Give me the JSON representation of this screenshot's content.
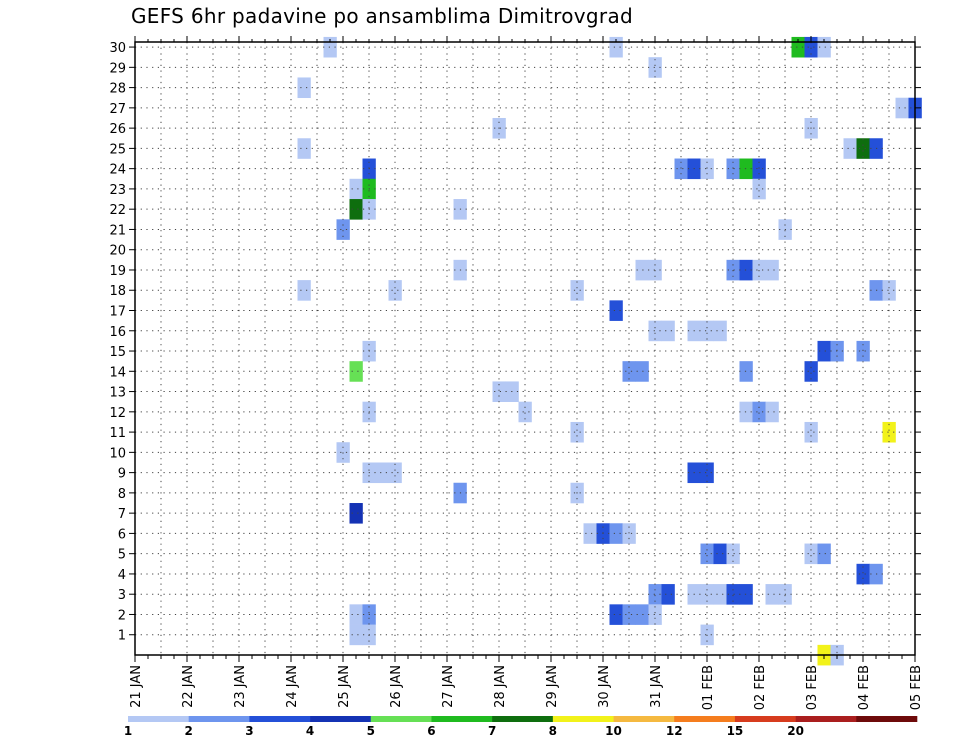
{
  "chart_data": {
    "type": "heatmap",
    "title": "GEFS 6hr padavine po ansamblima Dimitrovgrad",
    "xlabel": "",
    "ylabel": "",
    "x_tick_labels": [
      "21 JAN",
      "22 JAN",
      "23 JAN",
      "24 JAN",
      "25 JAN",
      "26 JAN",
      "27 JAN",
      "28 JAN",
      "29 JAN",
      "30 JAN",
      "31 JAN",
      "01 FEB",
      "02 FEB",
      "03 FEB",
      "04 FEB",
      "05 FEB"
    ],
    "x_range_steps": [
      0,
      60
    ],
    "steps_per_day": 4,
    "y_tick_labels": [
      "1",
      "2",
      "3",
      "4",
      "5",
      "6",
      "7",
      "8",
      "9",
      "10",
      "11",
      "12",
      "13",
      "14",
      "15",
      "16",
      "17",
      "18",
      "19",
      "20",
      "21",
      "22",
      "23",
      "24",
      "25",
      "26",
      "27",
      "28",
      "29",
      "30"
    ],
    "y_range": [
      0,
      30
    ],
    "grid": true,
    "colorbar": {
      "labels": [
        "1",
        "2",
        "3",
        "4",
        "5",
        "6",
        "7",
        "8",
        "10",
        "12",
        "15",
        "20"
      ],
      "colors": [
        "#b4c8f4",
        "#6e95ee",
        "#2450d8",
        "#1432b4",
        "#66e055",
        "#1fbb1f",
        "#0e6e0e",
        "#f2f21a",
        "#f5b940",
        "#f57d1e",
        "#d73c1e",
        "#aa1e1e",
        "#6e0a0a"
      ]
    },
    "cells": [
      [
        15,
        30,
        1
      ],
      [
        37,
        30,
        1
      ],
      [
        51,
        30,
        6
      ],
      [
        52,
        30,
        3
      ],
      [
        53,
        30,
        1
      ],
      [
        40,
        29,
        1
      ],
      [
        13,
        28,
        1
      ],
      [
        59,
        27,
        1
      ],
      [
        60,
        27,
        3
      ],
      [
        28,
        26,
        1
      ],
      [
        52,
        26,
        1
      ],
      [
        13,
        25,
        1
      ],
      [
        55,
        25,
        1
      ],
      [
        56,
        25,
        7
      ],
      [
        57,
        25,
        3
      ],
      [
        18,
        24,
        3
      ],
      [
        42,
        24,
        2
      ],
      [
        43,
        24,
        3
      ],
      [
        44,
        24,
        1
      ],
      [
        46,
        24,
        2
      ],
      [
        47,
        24,
        6
      ],
      [
        48,
        24,
        3
      ],
      [
        17,
        23,
        1
      ],
      [
        18,
        23,
        6
      ],
      [
        48,
        23,
        1
      ],
      [
        17,
        22,
        7
      ],
      [
        18,
        22,
        1
      ],
      [
        25,
        22,
        1
      ],
      [
        16,
        21,
        2
      ],
      [
        50,
        21,
        1
      ],
      [
        25,
        19,
        1
      ],
      [
        39,
        19,
        1
      ],
      [
        40,
        19,
        1
      ],
      [
        46,
        19,
        2
      ],
      [
        47,
        19,
        3
      ],
      [
        48,
        19,
        1
      ],
      [
        49,
        19,
        1
      ],
      [
        13,
        18,
        1
      ],
      [
        20,
        18,
        1
      ],
      [
        34,
        18,
        1
      ],
      [
        57,
        18,
        2
      ],
      [
        58,
        18,
        1
      ],
      [
        37,
        17,
        3
      ],
      [
        40,
        16,
        1
      ],
      [
        41,
        16,
        1
      ],
      [
        43,
        16,
        1
      ],
      [
        44,
        16,
        1
      ],
      [
        45,
        16,
        1
      ],
      [
        18,
        15,
        1
      ],
      [
        53,
        15,
        3
      ],
      [
        54,
        15,
        2
      ],
      [
        56,
        15,
        2
      ],
      [
        17,
        14,
        5
      ],
      [
        38,
        14,
        2
      ],
      [
        39,
        14,
        2
      ],
      [
        47,
        14,
        2
      ],
      [
        52,
        14,
        3
      ],
      [
        28,
        13,
        1
      ],
      [
        29,
        13,
        1
      ],
      [
        18,
        12,
        1
      ],
      [
        30,
        12,
        1
      ],
      [
        47,
        12,
        1
      ],
      [
        48,
        12,
        2
      ],
      [
        49,
        12,
        1
      ],
      [
        34,
        11,
        1
      ],
      [
        52,
        11,
        1
      ],
      [
        58,
        11,
        8
      ],
      [
        16,
        10,
        1
      ],
      [
        18,
        9,
        1
      ],
      [
        19,
        9,
        1
      ],
      [
        20,
        9,
        1
      ],
      [
        43,
        9,
        3
      ],
      [
        44,
        9,
        3
      ],
      [
        25,
        8,
        2
      ],
      [
        34,
        8,
        1
      ],
      [
        17,
        7,
        4
      ],
      [
        35,
        6,
        1
      ],
      [
        36,
        6,
        3
      ],
      [
        37,
        6,
        2
      ],
      [
        38,
        6,
        1
      ],
      [
        44,
        5,
        2
      ],
      [
        45,
        5,
        3
      ],
      [
        46,
        5,
        1
      ],
      [
        52,
        5,
        1
      ],
      [
        53,
        5,
        2
      ],
      [
        56,
        4,
        3
      ],
      [
        57,
        4,
        2
      ],
      [
        40,
        3,
        2
      ],
      [
        41,
        3,
        3
      ],
      [
        43,
        3,
        1
      ],
      [
        44,
        3,
        1
      ],
      [
        45,
        3,
        1
      ],
      [
        46,
        3,
        3
      ],
      [
        47,
        3,
        3
      ],
      [
        49,
        3,
        1
      ],
      [
        50,
        3,
        1
      ],
      [
        17,
        2,
        1
      ],
      [
        18,
        2,
        2
      ],
      [
        37,
        2,
        3
      ],
      [
        38,
        2,
        2
      ],
      [
        39,
        2,
        2
      ],
      [
        40,
        2,
        1
      ],
      [
        17,
        1,
        1
      ],
      [
        18,
        1,
        1
      ],
      [
        44,
        1,
        1
      ],
      [
        53,
        0,
        8
      ],
      [
        54,
        0,
        1
      ]
    ]
  }
}
